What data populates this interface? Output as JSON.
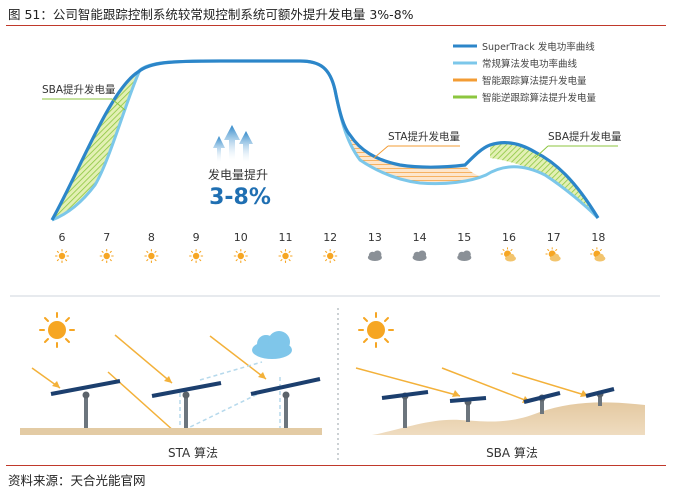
{
  "figure": {
    "title": "图 51：公司智能跟踪控制系统较常规控制系统可额外提升发电量 3%-8%",
    "source": "资料来源：天合光能官网"
  },
  "legend": [
    {
      "label": "SuperTrack 发电功率曲线",
      "color": "#2c86c9"
    },
    {
      "label": "常规算法发电功率曲线",
      "color": "#7cc7ea"
    },
    {
      "label": "智能跟踪算法提升发电量",
      "color": "#f39c34"
    },
    {
      "label": "智能逆跟踪算法提升发电量",
      "color": "#8cc63f"
    }
  ],
  "power_chart": {
    "annotations": {
      "sba_left": "SBA提升发电量",
      "sta": "STA提升发电量",
      "sba_right": "SBA提升发电量",
      "gain_label": "发电量提升",
      "gain_value": "3-8%"
    },
    "hours": [
      "6",
      "7",
      "8",
      "9",
      "10",
      "11",
      "12",
      "13",
      "14",
      "15",
      "16",
      "17",
      "18"
    ],
    "weather": [
      "sun",
      "sun",
      "sun",
      "sun",
      "sun",
      "sun",
      "sun",
      "cloud",
      "cloud",
      "cloud",
      "sun-cloud",
      "sun-cloud",
      "sun-cloud"
    ]
  },
  "panels": {
    "sta_caption": "STA 算法",
    "sba_caption": "SBA 算法"
  }
}
